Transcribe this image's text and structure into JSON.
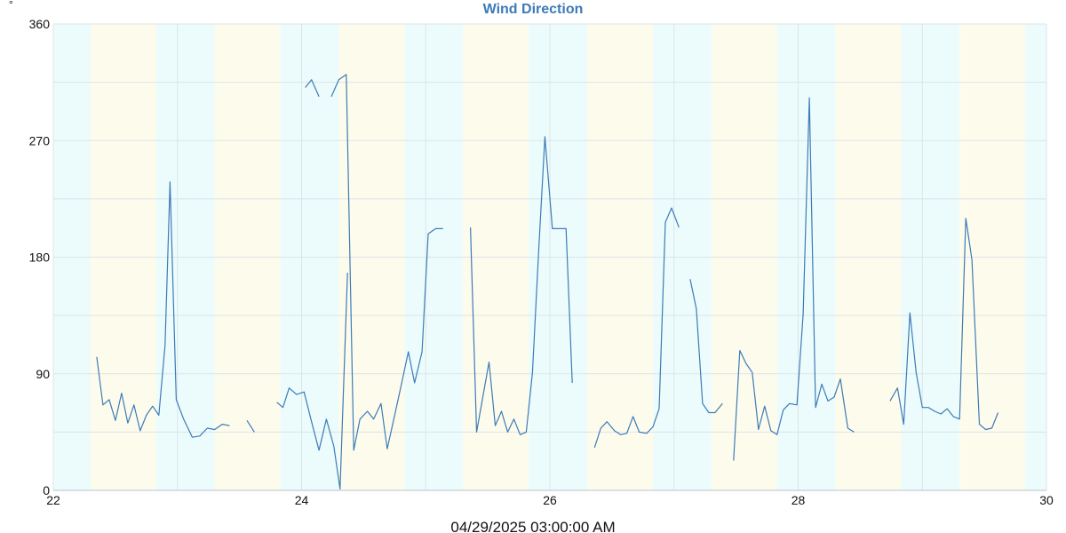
{
  "chart_data": {
    "type": "line",
    "title": "Wind Direction",
    "xlabel": "04/29/2025 03:00:00 AM",
    "ylabel": "°",
    "ylim": [
      0,
      360
    ],
    "xlim": [
      22,
      30
    ],
    "y_ticks": [
      "0",
      "90",
      "180",
      "270",
      "360"
    ],
    "x_ticks": [
      "22",
      "24",
      "26",
      "28",
      "30"
    ],
    "grid": true,
    "band_colors": {
      "night": "#ecfcfc",
      "day": "#fdfcec"
    },
    "line_color": "#3d7ab8",
    "series": [
      {
        "segments": [
          [
            [
              22.35,
              103
            ],
            [
              22.4,
              66
            ],
            [
              22.45,
              70
            ],
            [
              22.5,
              54
            ],
            [
              22.55,
              75
            ],
            [
              22.6,
              52
            ],
            [
              22.65,
              66
            ],
            [
              22.7,
              46
            ],
            [
              22.75,
              58
            ],
            [
              22.8,
              65
            ],
            [
              22.85,
              58
            ],
            [
              22.9,
              112
            ],
            [
              22.94,
              238
            ],
            [
              22.99,
              70
            ],
            [
              23.05,
              55
            ],
            [
              23.12,
              41
            ],
            [
              23.18,
              42
            ],
            [
              23.24,
              48
            ],
            [
              23.3,
              47
            ],
            [
              23.36,
              51
            ],
            [
              23.42,
              50
            ]
          ],
          [
            [
              23.56,
              54
            ],
            [
              23.62,
              45
            ]
          ],
          [
            [
              23.8,
              68
            ],
            [
              23.85,
              64
            ],
            [
              23.9,
              79
            ],
            [
              23.96,
              74
            ],
            [
              24.02,
              76
            ],
            [
              24.08,
              53
            ],
            [
              24.14,
              31
            ],
            [
              24.2,
              55
            ],
            [
              24.26,
              34
            ],
            [
              24.31,
              1
            ],
            [
              24.37,
              168
            ]
          ],
          [
            [
              24.03,
              311
            ],
            [
              24.08,
              317
            ],
            [
              24.14,
              304
            ]
          ],
          [
            [
              24.24,
              304
            ],
            [
              24.3,
              317
            ],
            [
              24.36,
              321
            ],
            [
              24.42,
              31
            ],
            [
              24.47,
              55
            ],
            [
              24.53,
              61
            ],
            [
              24.58,
              55
            ],
            [
              24.64,
              67
            ],
            [
              24.69,
              32
            ],
            [
              24.75,
              58
            ],
            [
              24.8,
              80
            ],
            [
              24.86,
              107
            ],
            [
              24.91,
              83
            ],
            [
              24.97,
              107
            ],
            [
              25.02,
              198
            ],
            [
              25.08,
              202
            ],
            [
              25.14,
              202
            ]
          ],
          [
            [
              25.36,
              203
            ],
            [
              25.41,
              45
            ],
            [
              25.46,
              72
            ],
            [
              25.51,
              99
            ],
            [
              25.56,
              50
            ],
            [
              25.61,
              61
            ],
            [
              25.66,
              45
            ],
            [
              25.71,
              55
            ],
            [
              25.76,
              43
            ],
            [
              25.81,
              45
            ],
            [
              25.86,
              91
            ],
            [
              25.91,
              185
            ],
            [
              25.96,
              273
            ],
            [
              26.02,
              202
            ],
            [
              26.07,
              202
            ],
            [
              26.13,
              202
            ],
            [
              26.18,
              83
            ]
          ],
          [
            [
              26.36,
              33
            ],
            [
              26.41,
              48
            ],
            [
              26.46,
              53
            ],
            [
              26.52,
              46
            ],
            [
              26.57,
              43
            ],
            [
              26.62,
              44
            ],
            [
              26.67,
              57
            ],
            [
              26.72,
              45
            ],
            [
              26.78,
              44
            ],
            [
              26.83,
              49
            ],
            [
              26.88,
              63
            ],
            [
              26.93,
              207
            ],
            [
              26.98,
              218
            ],
            [
              27.04,
              203
            ]
          ],
          [
            [
              27.13,
              163
            ],
            [
              27.18,
              140
            ],
            [
              27.23,
              67
            ],
            [
              27.28,
              60
            ],
            [
              27.33,
              60
            ],
            [
              27.39,
              67
            ]
          ],
          [
            [
              27.48,
              23
            ],
            [
              27.53,
              108
            ],
            [
              27.58,
              98
            ],
            [
              27.63,
              91
            ],
            [
              27.68,
              47
            ],
            [
              27.73,
              65
            ],
            [
              27.78,
              46
            ],
            [
              27.83,
              43
            ],
            [
              27.88,
              62
            ],
            [
              27.93,
              67
            ],
            [
              27.99,
              66
            ],
            [
              28.04,
              136
            ],
            [
              28.09,
              303
            ],
            [
              28.14,
              64
            ],
            [
              28.19,
              82
            ],
            [
              28.24,
              69
            ],
            [
              28.29,
              72
            ],
            [
              28.34,
              86
            ],
            [
              28.4,
              48
            ],
            [
              28.45,
              45
            ]
          ],
          [
            [
              28.74,
              69
            ],
            [
              28.8,
              79
            ],
            [
              28.85,
              51
            ],
            [
              28.9,
              137
            ],
            [
              28.95,
              91
            ],
            [
              29.0,
              64
            ],
            [
              29.05,
              64
            ],
            [
              29.1,
              61
            ],
            [
              29.15,
              59
            ],
            [
              29.2,
              63
            ],
            [
              29.25,
              57
            ],
            [
              29.3,
              55
            ],
            [
              29.35,
              210
            ],
            [
              29.4,
              178
            ],
            [
              29.46,
              51
            ],
            [
              29.51,
              47
            ],
            [
              29.56,
              48
            ],
            [
              29.61,
              60
            ]
          ]
        ]
      }
    ],
    "bands": [
      {
        "kind": "night",
        "from": 22.0,
        "to": 22.3
      },
      {
        "kind": "day",
        "from": 22.3,
        "to": 22.83
      },
      {
        "kind": "night",
        "from": 22.83,
        "to": 23.3
      },
      {
        "kind": "day",
        "from": 23.3,
        "to": 23.83
      },
      {
        "kind": "night",
        "from": 23.83,
        "to": 24.3
      },
      {
        "kind": "day",
        "from": 24.3,
        "to": 24.83
      },
      {
        "kind": "night",
        "from": 24.83,
        "to": 25.3
      },
      {
        "kind": "day",
        "from": 25.3,
        "to": 25.83
      },
      {
        "kind": "night",
        "from": 25.83,
        "to": 26.3
      },
      {
        "kind": "day",
        "from": 26.3,
        "to": 26.83
      },
      {
        "kind": "night",
        "from": 26.83,
        "to": 27.3
      },
      {
        "kind": "day",
        "from": 27.3,
        "to": 27.83
      },
      {
        "kind": "night",
        "from": 27.83,
        "to": 28.3
      },
      {
        "kind": "day",
        "from": 28.3,
        "to": 28.83
      },
      {
        "kind": "night",
        "from": 28.83,
        "to": 29.3
      },
      {
        "kind": "day",
        "from": 29.3,
        "to": 29.83
      },
      {
        "kind": "night",
        "from": 29.83,
        "to": 30.0
      }
    ]
  }
}
